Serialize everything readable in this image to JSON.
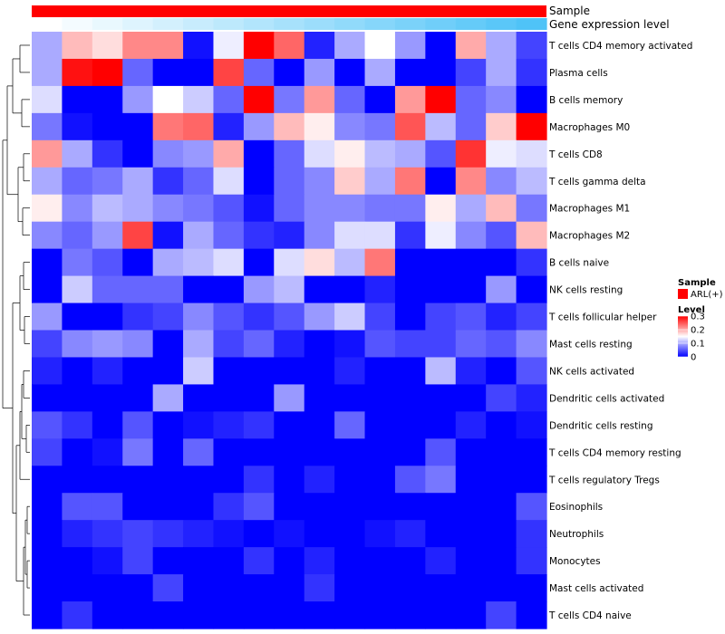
{
  "chart_data": {
    "type": "heatmap",
    "rows": [
      "T cells CD4 memory activated",
      "Plasma cells",
      "B cells memory",
      "Macrophages M0",
      "T cells CD8",
      "T cells gamma delta",
      "Macrophages M1",
      "Macrophages M2",
      "B cells naive",
      "NK cells resting",
      "T cells follicular helper",
      "Mast cells resting",
      "NK cells activated",
      "Dendritic cells activated",
      "Dendritic cells resting",
      "T cells CD4 memory resting",
      "T cells regulatory  Tregs",
      "Eosinophils",
      "Neutrophils",
      "Monocytes",
      "Mast cells activated",
      "T cells CD4 naive"
    ],
    "columns": 17,
    "values": [
      [
        0.1,
        0.19,
        0.17,
        0.22,
        0.22,
        0.01,
        0.14,
        0.3,
        0.24,
        0.02,
        0.1,
        0.15,
        0.09,
        0.0,
        0.2,
        0.1,
        0.04
      ],
      [
        0.1,
        0.29,
        0.3,
        0.06,
        0.0,
        0.0,
        0.26,
        0.06,
        0.0,
        0.09,
        0.0,
        0.1,
        0.0,
        0.0,
        0.04,
        0.1,
        0.03
      ],
      [
        0.13,
        0.0,
        0.0,
        0.09,
        0.15,
        0.12,
        0.06,
        0.3,
        0.07,
        0.21,
        0.06,
        0.0,
        0.21,
        0.3,
        0.06,
        0.08,
        0.0
      ],
      [
        0.07,
        0.01,
        0.0,
        0.0,
        0.23,
        0.24,
        0.02,
        0.09,
        0.19,
        0.16,
        0.08,
        0.07,
        0.25,
        0.11,
        0.06,
        0.18,
        0.3
      ],
      [
        0.21,
        0.1,
        0.03,
        0.0,
        0.08,
        0.09,
        0.2,
        0.0,
        0.06,
        0.13,
        0.16,
        0.11,
        0.1,
        0.05,
        0.27,
        0.14,
        0.13
      ],
      [
        0.1,
        0.06,
        0.07,
        0.1,
        0.03,
        0.06,
        0.13,
        0.0,
        0.06,
        0.08,
        0.18,
        0.1,
        0.23,
        0.0,
        0.22,
        0.08,
        0.11
      ],
      [
        0.16,
        0.08,
        0.11,
        0.1,
        0.08,
        0.07,
        0.05,
        0.01,
        0.06,
        0.08,
        0.08,
        0.07,
        0.07,
        0.16,
        0.1,
        0.19,
        0.07
      ],
      [
        0.08,
        0.06,
        0.09,
        0.26,
        0.01,
        0.1,
        0.06,
        0.03,
        0.02,
        0.08,
        0.13,
        0.13,
        0.03,
        0.14,
        0.08,
        0.05,
        0.19
      ],
      [
        0.0,
        0.07,
        0.05,
        0.0,
        0.1,
        0.11,
        0.13,
        0.0,
        0.13,
        0.17,
        0.11,
        0.23,
        0.0,
        0.0,
        0.0,
        0.0,
        0.03
      ],
      [
        0.0,
        0.12,
        0.06,
        0.06,
        0.06,
        0.0,
        0.0,
        0.09,
        0.11,
        0.0,
        0.0,
        0.02,
        0.0,
        0.0,
        0.0,
        0.09,
        0.0
      ],
      [
        0.09,
        0.0,
        0.0,
        0.03,
        0.04,
        0.08,
        0.05,
        0.03,
        0.05,
        0.09,
        0.12,
        0.04,
        0.0,
        0.04,
        0.05,
        0.02,
        0.04
      ],
      [
        0.04,
        0.08,
        0.09,
        0.08,
        0.0,
        0.1,
        0.04,
        0.06,
        0.02,
        0.0,
        0.01,
        0.05,
        0.04,
        0.04,
        0.06,
        0.05,
        0.08
      ],
      [
        0.02,
        0.0,
        0.02,
        0.0,
        0.0,
        0.12,
        0.0,
        0.0,
        0.0,
        0.0,
        0.02,
        0.0,
        0.0,
        0.11,
        0.02,
        0.0,
        0.05
      ],
      [
        0.0,
        0.0,
        0.0,
        0.0,
        0.1,
        0.0,
        0.0,
        0.0,
        0.09,
        0.0,
        0.0,
        0.0,
        0.0,
        0.0,
        0.0,
        0.04,
        0.02
      ],
      [
        0.05,
        0.03,
        0.0,
        0.05,
        0.0,
        0.01,
        0.02,
        0.03,
        0.0,
        0.0,
        0.06,
        0.0,
        0.0,
        0.0,
        0.02,
        0.0,
        0.01
      ],
      [
        0.04,
        0.0,
        0.01,
        0.07,
        0.0,
        0.06,
        0.0,
        0.0,
        0.0,
        0.0,
        0.0,
        0.0,
        0.0,
        0.05,
        0.0,
        0.0,
        0.0
      ],
      [
        0.0,
        0.0,
        0.0,
        0.0,
        0.0,
        0.0,
        0.0,
        0.03,
        0.0,
        0.02,
        0.0,
        0.0,
        0.05,
        0.07,
        0.0,
        0.0,
        0.0
      ],
      [
        0.0,
        0.05,
        0.05,
        0.0,
        0.0,
        0.0,
        0.03,
        0.05,
        0.0,
        0.0,
        0.0,
        0.0,
        0.0,
        0.0,
        0.0,
        0.0,
        0.05
      ],
      [
        0.0,
        0.02,
        0.03,
        0.04,
        0.03,
        0.02,
        0.01,
        0.0,
        0.01,
        0.0,
        0.0,
        0.01,
        0.02,
        0.0,
        0.0,
        0.0,
        0.03
      ],
      [
        0.0,
        0.0,
        0.01,
        0.04,
        0.0,
        0.0,
        0.0,
        0.03,
        0.0,
        0.02,
        0.0,
        0.0,
        0.0,
        0.02,
        0.0,
        0.0,
        0.03
      ],
      [
        0.0,
        0.0,
        0.0,
        0.0,
        0.04,
        0.0,
        0.0,
        0.0,
        0.0,
        0.03,
        0.0,
        0.0,
        0.0,
        0.0,
        0.0,
        0.0,
        0.0
      ],
      [
        0.0,
        0.03,
        0.0,
        0.0,
        0.0,
        0.0,
        0.0,
        0.0,
        0.0,
        0.0,
        0.0,
        0.0,
        0.0,
        0.0,
        0.0,
        0.04,
        0.0
      ]
    ],
    "annotation_tracks": [
      {
        "name": "Sample",
        "color": "#ff0000"
      },
      {
        "name": "Gene expression level",
        "colors": [
          "#ffffff",
          "#4fc3f7"
        ]
      }
    ],
    "legend": {
      "sample_title": "Sample",
      "sample_entries": [
        {
          "label": "ARL(+)",
          "color": "#ff0000"
        }
      ],
      "level_title": "Level",
      "level_ticks": [
        "0.3",
        "0.2",
        "0.1",
        "0"
      ],
      "level_tick_values": [
        0.3,
        0.2,
        0.1,
        0
      ],
      "colors": {
        "low": "#0000ff",
        "mid": "#ffffff",
        "high": "#ff0000"
      }
    },
    "dendrogram": "rows",
    "range": [
      0,
      0.3
    ]
  }
}
